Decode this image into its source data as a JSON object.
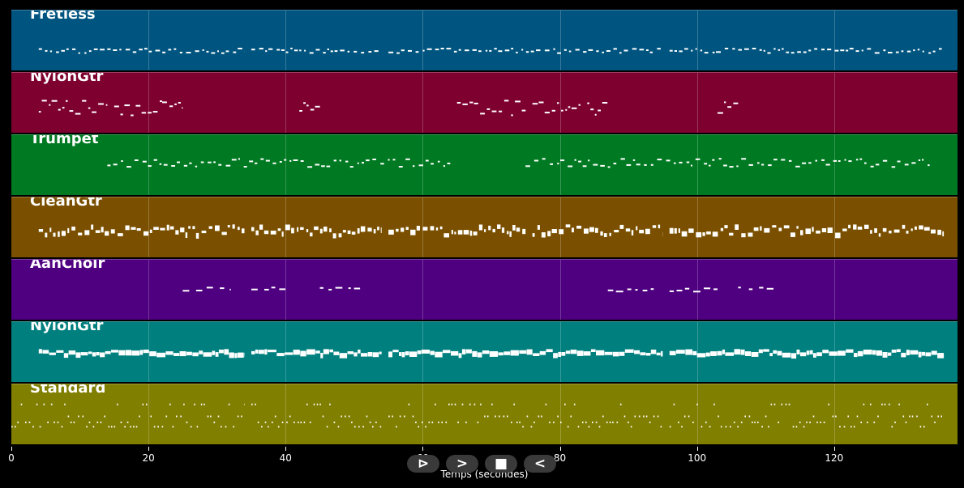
{
  "timeline": {
    "xlabel": "Temps (secondes)",
    "x_max": 138,
    "ticks": [
      0,
      20,
      40,
      60,
      80,
      100,
      120
    ]
  },
  "tracks": [
    {
      "name": "Fretless",
      "color": "#005580",
      "style": "melody",
      "band": [
        0.62,
        0.7
      ],
      "segments": [
        [
          4,
          34
        ],
        [
          35,
          54
        ],
        [
          55,
          95
        ],
        [
          96,
          136
        ]
      ]
    },
    {
      "name": "NylonGtr",
      "color": "#7d002e",
      "style": "phrase",
      "band": [
        0.45,
        0.7
      ],
      "segments": [
        [
          4,
          14
        ],
        [
          15,
          22
        ],
        [
          22,
          25
        ],
        [
          42,
          45
        ],
        [
          65,
          75
        ],
        [
          76,
          83
        ],
        [
          84,
          87
        ],
        [
          103,
          106
        ]
      ]
    },
    {
      "name": "Trumpet",
      "color": "#007a22",
      "style": "melody",
      "band": [
        0.38,
        0.52
      ],
      "segments": [
        [
          14,
          64
        ],
        [
          75,
          134
        ]
      ]
    },
    {
      "name": "CleanGtr",
      "color": "#7a5000",
      "style": "chords",
      "band": [
        0.45,
        0.6
      ],
      "segments": [
        [
          4,
          34
        ],
        [
          35,
          54
        ],
        [
          55,
          75
        ],
        [
          76,
          95
        ],
        [
          96,
          136
        ]
      ]
    },
    {
      "name": "AahChoir",
      "color": "#4f0080",
      "style": "sparse",
      "band": [
        0.45,
        0.52
      ],
      "segments": [
        [
          25,
          32
        ],
        [
          35,
          41
        ],
        [
          45,
          51
        ],
        [
          87,
          94
        ],
        [
          96,
          103
        ],
        [
          106,
          112
        ]
      ]
    },
    {
      "name": "NylonGtr",
      "color": "#007f7f",
      "style": "dense",
      "band": [
        0.45,
        0.6
      ],
      "segments": [
        [
          4,
          34
        ],
        [
          35,
          54
        ],
        [
          55,
          95
        ],
        [
          96,
          136
        ]
      ]
    },
    {
      "name": "Standard",
      "color": "#807f00",
      "style": "drums",
      "band": [
        0.32,
        0.72
      ],
      "segments": [
        [
          0,
          34
        ],
        [
          35,
          54
        ],
        [
          55,
          95
        ],
        [
          96,
          136
        ]
      ]
    }
  ],
  "controls": [
    {
      "label": "⊳",
      "action": "play"
    },
    {
      "label": ">",
      "action": "forward"
    },
    {
      "label": "■",
      "action": "stop"
    },
    {
      "label": "<",
      "action": "back"
    }
  ]
}
